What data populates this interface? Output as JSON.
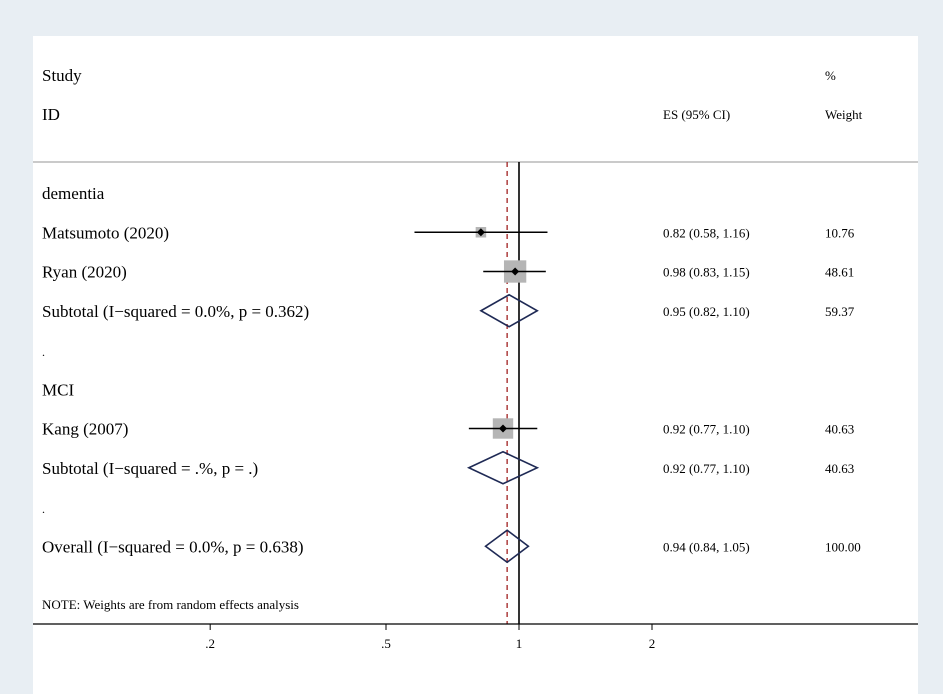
{
  "header": {
    "study_label": "Study",
    "id_label": "ID",
    "es_label": "ES (95% CI)",
    "pct_label": "%",
    "weight_label": "Weight"
  },
  "note": "NOTE: Weights are from random effects analysis",
  "colors": {
    "background": "#e8eef3",
    "panel": "#ffffff",
    "separator": "#b8b8b8",
    "reference_line": "#a02020",
    "diamond": "#1f2a55",
    "weight_box": "#b5b5b5"
  },
  "chart_data": {
    "type": "forest",
    "x_scale": "log",
    "x_ticks": [
      {
        "value": 0.2,
        "label": ".2"
      },
      {
        "value": 0.5,
        "label": ".5"
      },
      {
        "value": 1,
        "label": "1"
      },
      {
        "value": 2,
        "label": "2"
      }
    ],
    "null_line": 1,
    "overall_line": 0.94,
    "rows": [
      {
        "kind": "group",
        "label": "dementia"
      },
      {
        "kind": "study",
        "label": "Matsumoto (2020)",
        "es": 0.82,
        "lo": 0.58,
        "hi": 1.16,
        "es_text": "0.82 (0.58, 1.16)",
        "weight": 10.76,
        "weight_text": "10.76"
      },
      {
        "kind": "study",
        "label": "Ryan (2020)",
        "es": 0.98,
        "lo": 0.83,
        "hi": 1.15,
        "es_text": "0.98 (0.83, 1.15)",
        "weight": 48.61,
        "weight_text": "48.61"
      },
      {
        "kind": "subtotal",
        "label": "Subtotal  (I−squared = 0.0%, p = 0.362)",
        "es": 0.95,
        "lo": 0.82,
        "hi": 1.1,
        "es_text": "0.95 (0.82, 1.10)",
        "weight_text": "59.37"
      },
      {
        "kind": "spacer",
        "label": "."
      },
      {
        "kind": "group",
        "label": "MCI"
      },
      {
        "kind": "study",
        "label": "Kang (2007)",
        "es": 0.92,
        "lo": 0.77,
        "hi": 1.1,
        "es_text": "0.92 (0.77, 1.10)",
        "weight": 40.63,
        "weight_text": "40.63"
      },
      {
        "kind": "subtotal",
        "label": "Subtotal  (I−squared = .%, p = .)",
        "es": 0.92,
        "lo": 0.77,
        "hi": 1.1,
        "es_text": "0.92 (0.77, 1.10)",
        "weight_text": "40.63"
      },
      {
        "kind": "spacer",
        "label": "."
      },
      {
        "kind": "overall",
        "label": "Overall  (I−squared = 0.0%, p = 0.638)",
        "es": 0.94,
        "lo": 0.84,
        "hi": 1.05,
        "es_text": "0.94 (0.84, 1.05)",
        "weight_text": "100.00"
      }
    ]
  }
}
